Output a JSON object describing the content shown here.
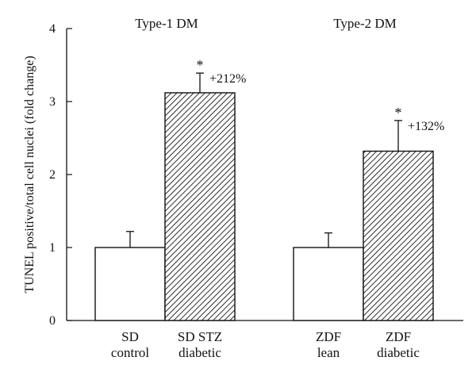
{
  "chart_data": {
    "type": "bar",
    "ylabel": "TUNEL positive/total cell nuclei (fold change)",
    "ylim": [
      0,
      4
    ],
    "yticks": [
      0,
      1,
      2,
      3,
      4
    ],
    "groups": [
      {
        "title": "Type-1 DM",
        "categories": [
          "SD control",
          "SD STZ diabetic"
        ]
      },
      {
        "title": "Type-2 DM",
        "categories": [
          "ZDF lean",
          "ZDF diabetic"
        ]
      }
    ],
    "bars": [
      {
        "category_lines": [
          "SD",
          "control"
        ],
        "value": 1.0,
        "error": 0.22,
        "fill": "white",
        "marker": "",
        "annotation": ""
      },
      {
        "category_lines": [
          "SD STZ",
          "diabetic"
        ],
        "value": 3.12,
        "error": 0.27,
        "fill": "hatched",
        "marker": "*",
        "annotation": "+212%"
      },
      {
        "category_lines": [
          "ZDF",
          "lean"
        ],
        "value": 1.0,
        "error": 0.2,
        "fill": "white",
        "marker": "",
        "annotation": ""
      },
      {
        "category_lines": [
          "ZDF",
          "diabetic"
        ],
        "value": 2.32,
        "error": 0.42,
        "fill": "hatched",
        "marker": "*",
        "annotation": "+132%"
      }
    ],
    "grid": false,
    "legend": "none"
  }
}
